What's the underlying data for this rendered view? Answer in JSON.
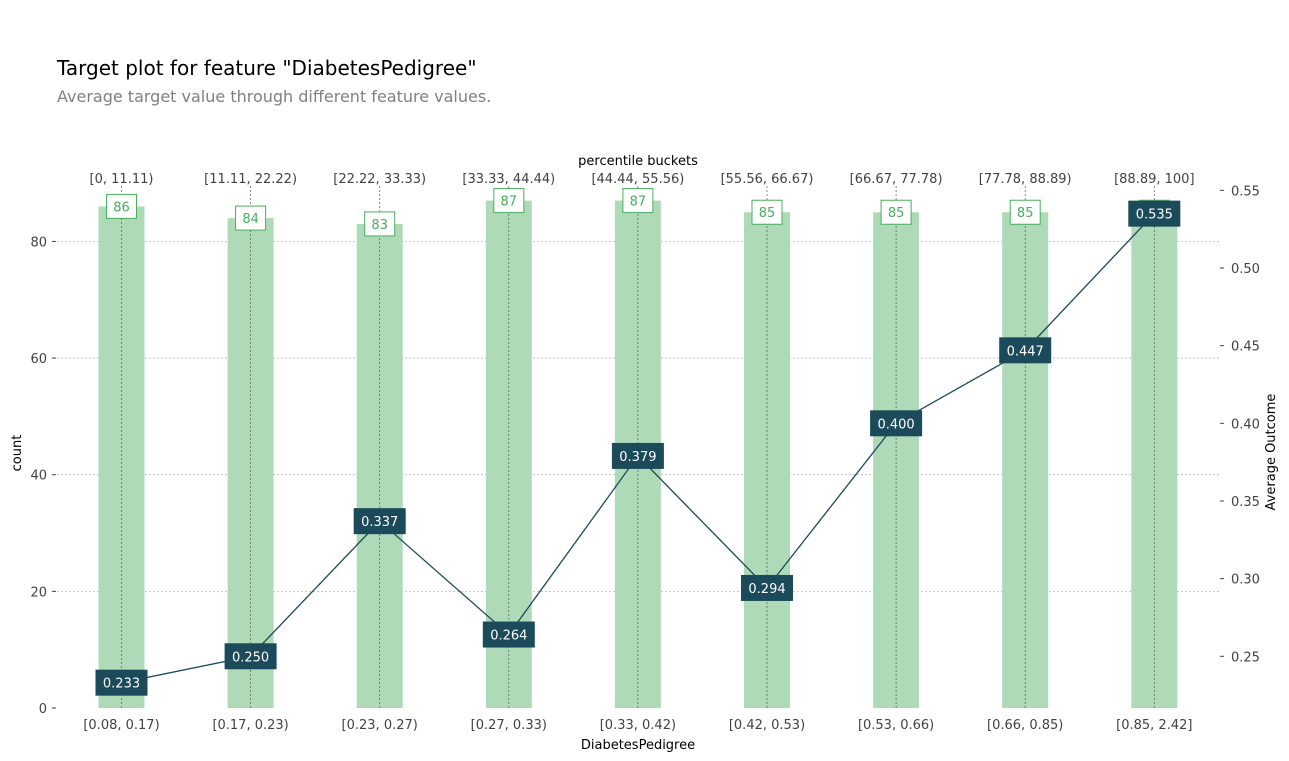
{
  "title": "Target plot for feature \"DiabetesPedigree\"",
  "subtitle": "Average target value through different feature values.",
  "colors": {
    "bar": "#aedab8",
    "count_text": "#4aad5f",
    "line": "#1b4a5a",
    "label_box": "#1b4a5a",
    "grid": "#b8b8b8"
  },
  "chart_data": {
    "type": "bar+line",
    "categories": [
      "[0.08, 0.17)",
      "[0.17, 0.23)",
      "[0.23, 0.27)",
      "[0.27, 0.33)",
      "[0.33, 0.42)",
      "[0.42, 0.53)",
      "[0.53, 0.66)",
      "[0.66, 0.85)",
      "[0.85, 2.42]"
    ],
    "percentile_buckets": [
      "[0, 11.11)",
      "[11.11, 22.22)",
      "[22.22, 33.33)",
      "[33.33, 44.44)",
      "[44.44, 55.56)",
      "[55.56, 66.67)",
      "[66.67, 77.78)",
      "[77.78, 88.89)",
      "[88.89, 100]"
    ],
    "series": [
      {
        "name": "count",
        "axis": "left",
        "values": [
          86,
          84,
          83,
          87,
          87,
          85,
          85,
          85,
          85
        ]
      },
      {
        "name": "Average Outcome",
        "axis": "right",
        "values": [
          0.233,
          0.25,
          0.337,
          0.264,
          0.379,
          0.294,
          0.4,
          0.447,
          0.535
        ]
      }
    ],
    "xlabel": "DiabetesPedigree",
    "top_xlabel": "percentile buckets",
    "ylabel_left": "count",
    "ylabel_right": "Average Outcome",
    "ylim_left": [
      0,
      89.5
    ],
    "yticks_left": [
      0,
      20,
      40,
      60,
      80
    ],
    "ylim_right": [
      0.2167,
      0.5528
    ],
    "yticks_right": [
      0.25,
      0.3,
      0.35,
      0.4,
      0.45,
      0.5,
      0.55
    ],
    "grid": true
  }
}
